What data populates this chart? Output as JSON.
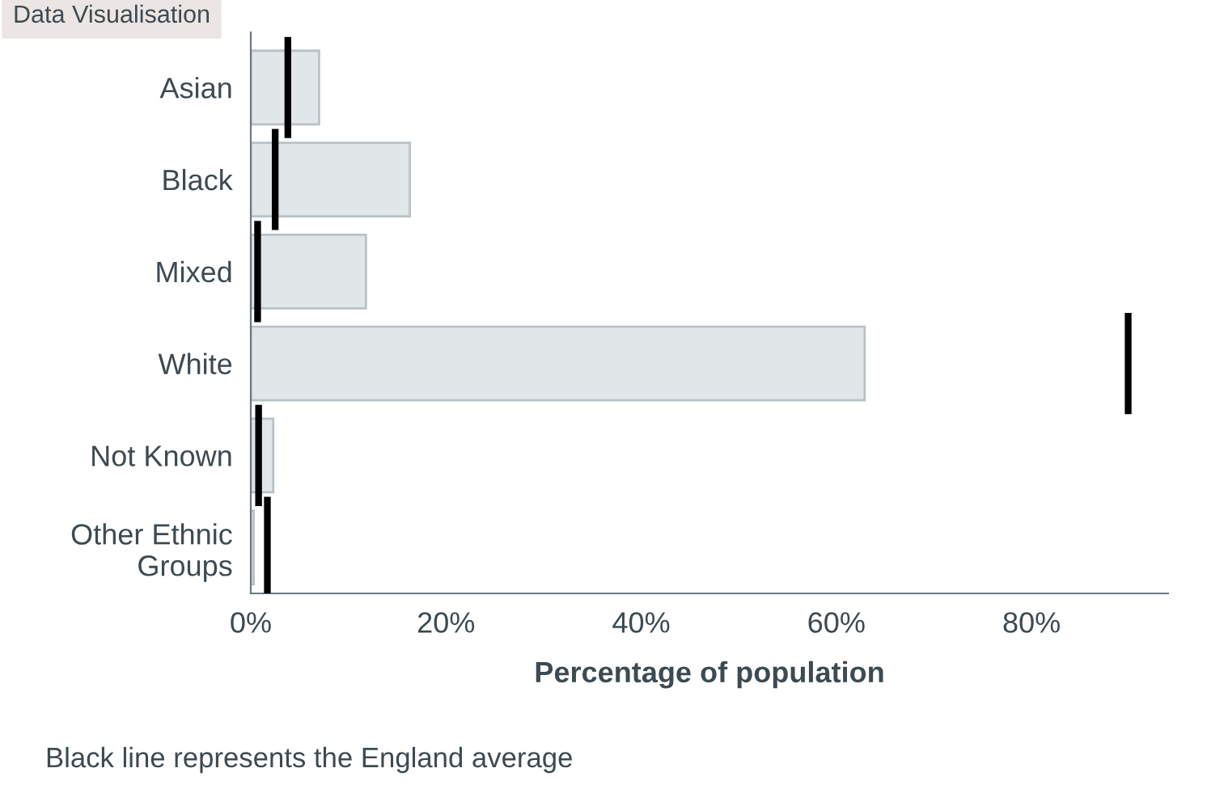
{
  "chart_data": {
    "type": "bar",
    "orientation": "horizontal",
    "title": "Data Visualisation",
    "xlabel": "Percentage of population",
    "categories": [
      "Asian",
      "Black",
      "Mixed",
      "White",
      "Not Known",
      "Other Ethnic\nGroups"
    ],
    "series": [
      {
        "color": "#e1e6e9",
        "values": [
          7.0,
          16.3,
          11.8,
          62.9,
          2.3,
          0.3
        ]
      }
    ],
    "ref_lines": [
      {
        "axis": "x",
        "value": 3.8,
        "color": "#000000"
      },
      {
        "axis": "x",
        "value": 2.5,
        "color": "#000000"
      },
      {
        "axis": "x",
        "value": 0.7,
        "color": "#000000"
      },
      {
        "axis": "x",
        "value": 89.9,
        "color": "#000000"
      },
      {
        "axis": "x",
        "value": 0.8,
        "color": "#000000"
      },
      {
        "axis": "x",
        "value": 1.7,
        "color": "#000000"
      }
    ],
    "xlim": [
      0,
      94
    ],
    "xticks": [
      {
        "value": 0,
        "label": "0%"
      },
      {
        "value": 20,
        "label": "20%"
      },
      {
        "value": 40,
        "label": "40%"
      },
      {
        "value": 60,
        "label": "60%"
      },
      {
        "value": 80,
        "label": "80%"
      }
    ],
    "grid": false,
    "annotations": [
      "Black line represents the England average"
    ]
  }
}
